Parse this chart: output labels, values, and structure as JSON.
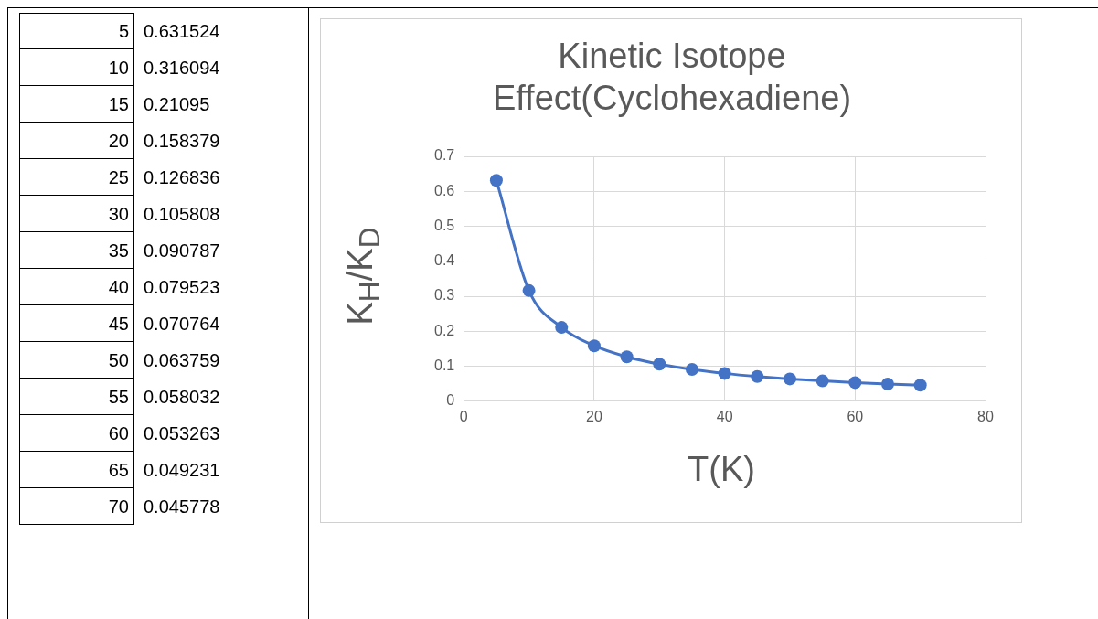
{
  "chart_data": [
    {
      "type": "other",
      "annotations": [
        "5\t0.631524",
        "10\t0.316094",
        "15\t0.21095",
        "20\t0.158379",
        "25\t0.126836",
        "30\t0.105808",
        "35\t0.090787",
        "40\t0.079523",
        "45\t0.070764",
        "50\t0.063759",
        "55\t0.058032",
        "60\t0.053263",
        "65\t0.049231",
        "70\t0.045778"
      ]
    },
    {
      "type": "line",
      "title": "Kinetic Isotope Effect(Cyclohexadiene)",
      "xlabel": "T(K)",
      "ylabel": "K$_{H}$/K$_{D}$",
      "x": [
        5,
        10,
        15,
        20,
        25,
        30,
        35,
        40,
        45,
        50,
        55,
        60,
        65,
        70
      ],
      "series": [
        {
          "color": "#4472c4",
          "values": [
            0.631524,
            0.316094,
            0.21095,
            0.158379,
            0.126836,
            0.105808,
            0.090787,
            0.079523,
            0.070764,
            0.063759,
            0.058032,
            0.053263,
            0.049231,
            0.045778
          ]
        }
      ],
      "xlim": [
        0,
        80
      ],
      "xticks": [
        0,
        20,
        40,
        60,
        80
      ],
      "ylim": [
        0,
        0.7
      ],
      "yticks": [
        0,
        0.1,
        0.2,
        0.3,
        0.4,
        0.5,
        0.6,
        0.7
      ],
      "grid": true,
      "legend": false,
      "marker": "circle",
      "line_style": "solid"
    }
  ]
}
